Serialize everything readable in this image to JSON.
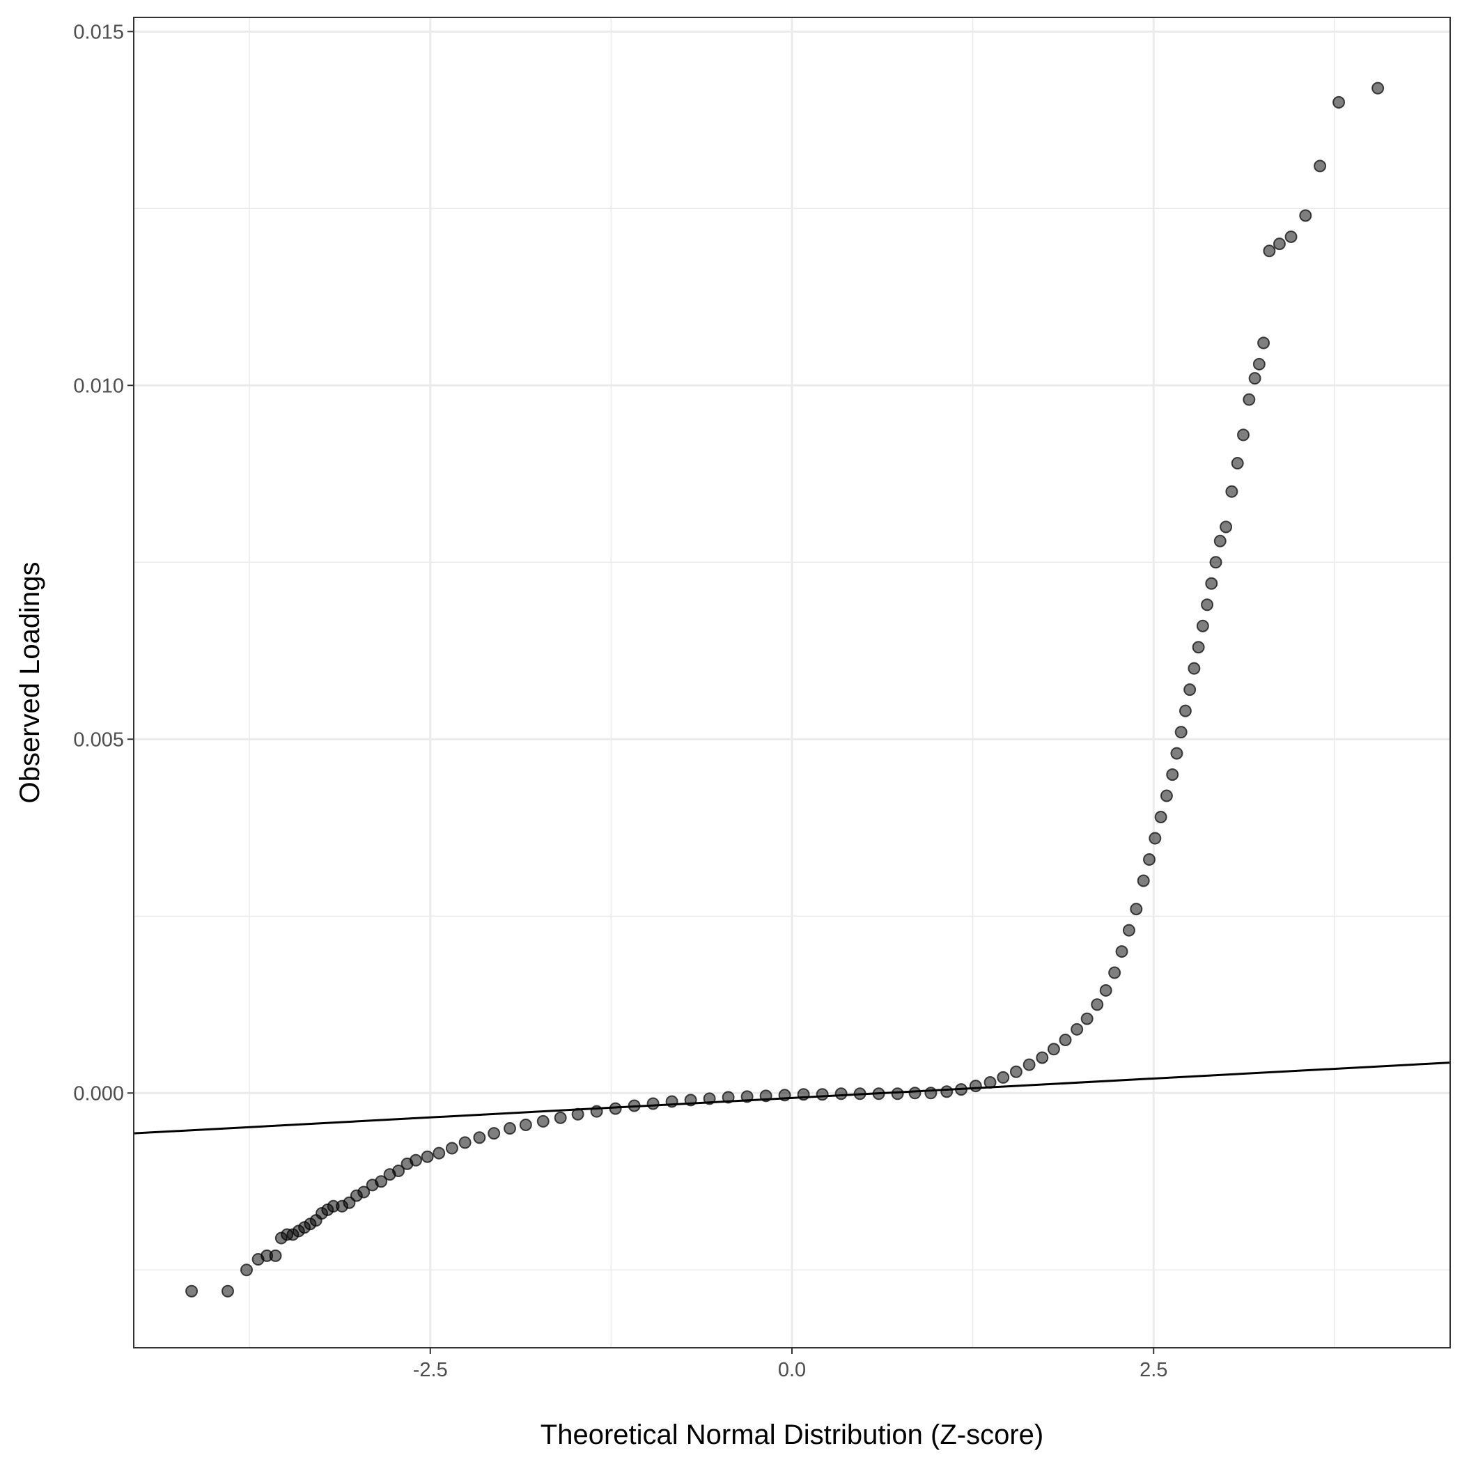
{
  "chart_data": {
    "type": "scatter",
    "title": "",
    "xlabel": "Theoretical Normal Distribution (Z-score)",
    "ylabel": "Observed Loadings",
    "xlim": [
      -4.55,
      4.55
    ],
    "ylim": [
      -0.0036,
      0.0152
    ],
    "x_ticks": [
      -2.5,
      0.0,
      2.5
    ],
    "x_tick_labels": [
      "-2.5",
      "0.0",
      "2.5"
    ],
    "y_ticks": [
      0.0,
      0.005,
      0.01,
      0.015
    ],
    "y_tick_labels": [
      "0.000",
      "0.005",
      "0.010",
      "0.015"
    ],
    "grid": true,
    "legend": "none",
    "point_color": "#000000",
    "point_opacity": 0.5,
    "reference_line": {
      "x": [
        -4.55,
        4.55
      ],
      "y": [
        -0.00057,
        0.00043
      ]
    },
    "points": [
      [
        -4.15,
        -0.0028
      ],
      [
        -3.9,
        -0.0028
      ],
      [
        -3.77,
        -0.0025
      ],
      [
        -3.69,
        -0.00235
      ],
      [
        -3.63,
        -0.0023
      ],
      [
        -3.57,
        -0.0023
      ],
      [
        -3.53,
        -0.00205
      ],
      [
        -3.49,
        -0.002
      ],
      [
        -3.45,
        -0.002
      ],
      [
        -3.41,
        -0.00195
      ],
      [
        -3.37,
        -0.0019
      ],
      [
        -3.33,
        -0.00185
      ],
      [
        -3.29,
        -0.0018
      ],
      [
        -3.25,
        -0.0017
      ],
      [
        -3.21,
        -0.00165
      ],
      [
        -3.17,
        -0.0016
      ],
      [
        -3.11,
        -0.0016
      ],
      [
        -3.06,
        -0.00155
      ],
      [
        -3.01,
        -0.00145
      ],
      [
        -2.96,
        -0.0014
      ],
      [
        -2.9,
        -0.0013
      ],
      [
        -2.84,
        -0.00125
      ],
      [
        -2.78,
        -0.00115
      ],
      [
        -2.72,
        -0.0011
      ],
      [
        -2.66,
        -0.001
      ],
      [
        -2.6,
        -0.00095
      ],
      [
        -2.52,
        -0.0009
      ],
      [
        -2.44,
        -0.00085
      ],
      [
        -2.35,
        -0.00078
      ],
      [
        -2.26,
        -0.0007
      ],
      [
        -2.16,
        -0.00063
      ],
      [
        -2.06,
        -0.00057
      ],
      [
        -1.95,
        -0.0005
      ],
      [
        -1.84,
        -0.00045
      ],
      [
        -1.72,
        -0.0004
      ],
      [
        -1.6,
        -0.00035
      ],
      [
        -1.48,
        -0.0003
      ],
      [
        -1.35,
        -0.00026
      ],
      [
        -1.22,
        -0.00022
      ],
      [
        -1.09,
        -0.00018
      ],
      [
        -0.96,
        -0.00015
      ],
      [
        -0.83,
        -0.00012
      ],
      [
        -0.7,
        -0.0001
      ],
      [
        -0.57,
        -8e-05
      ],
      [
        -0.44,
        -6e-05
      ],
      [
        -0.31,
        -5e-05
      ],
      [
        -0.18,
        -4e-05
      ],
      [
        -0.05,
        -3e-05
      ],
      [
        0.08,
        -2e-05
      ],
      [
        0.21,
        -2e-05
      ],
      [
        0.34,
        -1e-05
      ],
      [
        0.47,
        -1e-05
      ],
      [
        0.6,
        -1e-05
      ],
      [
        0.73,
        -1e-05
      ],
      [
        0.85,
        0.0
      ],
      [
        0.96,
        0.0
      ],
      [
        1.07,
        2e-05
      ],
      [
        1.17,
        5e-05
      ],
      [
        1.27,
        0.0001
      ],
      [
        1.37,
        0.00015
      ],
      [
        1.46,
        0.00022
      ],
      [
        1.55,
        0.0003
      ],
      [
        1.64,
        0.0004
      ],
      [
        1.73,
        0.0005
      ],
      [
        1.81,
        0.00062
      ],
      [
        1.89,
        0.00075
      ],
      [
        1.97,
        0.0009
      ],
      [
        2.04,
        0.00105
      ],
      [
        2.11,
        0.00125
      ],
      [
        2.17,
        0.00145
      ],
      [
        2.23,
        0.0017
      ],
      [
        2.28,
        0.002
      ],
      [
        2.33,
        0.0023
      ],
      [
        2.38,
        0.0026
      ],
      [
        2.43,
        0.003
      ],
      [
        2.47,
        0.0033
      ],
      [
        2.51,
        0.0036
      ],
      [
        2.55,
        0.0039
      ],
      [
        2.59,
        0.0042
      ],
      [
        2.63,
        0.0045
      ],
      [
        2.66,
        0.0048
      ],
      [
        2.69,
        0.0051
      ],
      [
        2.72,
        0.0054
      ],
      [
        2.75,
        0.0057
      ],
      [
        2.78,
        0.006
      ],
      [
        2.81,
        0.0063
      ],
      [
        2.84,
        0.0066
      ],
      [
        2.87,
        0.0069
      ],
      [
        2.9,
        0.0072
      ],
      [
        2.93,
        0.0075
      ],
      [
        2.96,
        0.0078
      ],
      [
        3.0,
        0.008
      ],
      [
        3.04,
        0.0085
      ],
      [
        3.08,
        0.0089
      ],
      [
        3.12,
        0.0093
      ],
      [
        3.16,
        0.0098
      ],
      [
        3.2,
        0.0101
      ],
      [
        3.23,
        0.0103
      ],
      [
        3.26,
        0.0106
      ],
      [
        3.3,
        0.0119
      ],
      [
        3.37,
        0.012
      ],
      [
        3.45,
        0.0121
      ],
      [
        3.55,
        0.0124
      ],
      [
        3.65,
        0.0131
      ],
      [
        3.78,
        0.014
      ],
      [
        4.05,
        0.0142
      ]
    ]
  }
}
